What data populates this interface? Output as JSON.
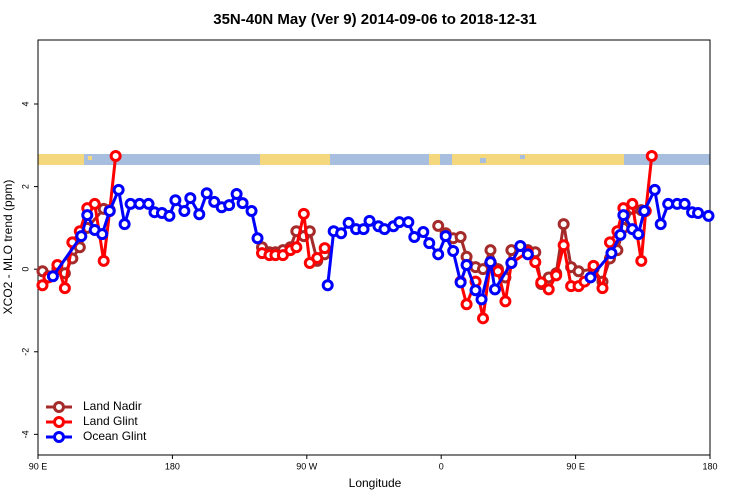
{
  "chart_data": {
    "type": "line",
    "title": "35N-40N May (Ver 9)   2014-09-06 to 2018-12-31",
    "xlabel": "Longitude",
    "ylabel": "XCO2 - MLO trend (ppm)",
    "xlim": [
      90,
      540
    ],
    "ylim": [
      -4.5,
      5.55
    ],
    "xticks": [
      {
        "value": 90,
        "label": "90 E"
      },
      180,
      {
        "value": 270,
        "label": "90 W"
      },
      {
        "value": 360,
        "label": "0"
      },
      {
        "value": 450,
        "label": "90 E"
      },
      {
        "value": 540,
        "label": "180"
      }
    ],
    "yticks": [
      -4,
      -2,
      0,
      2,
      4
    ],
    "legend": "bottom-left",
    "series": [
      {
        "name": "Land Nadir",
        "color": "#a52a2a",
        "x": [
          93,
          97,
          103,
          108,
          113,
          118,
          123,
          134,
          138,
          240,
          245,
          249,
          254,
          259,
          263,
          268,
          272,
          277,
          282,
          358,
          363,
          368,
          373,
          377,
          383,
          388,
          393,
          398,
          403,
          407,
          418,
          423,
          427,
          432,
          437,
          442,
          447,
          452,
          462,
          468,
          473,
          478,
          482,
          488,
          494
        ],
        "values": [
          -0.05,
          -0.17,
          0.0,
          -0.1,
          0.26,
          0.53,
          1.0,
          1.46,
          1.43,
          0.53,
          0.41,
          0.41,
          0.46,
          0.53,
          0.92,
          0.8,
          0.92,
          0.2,
          0.36,
          1.05,
          0.87,
          0.75,
          0.78,
          0.3,
          0.05,
          0.0,
          0.46,
          0.0,
          -0.2,
          0.46,
          0.46,
          0.41,
          -0.36,
          -0.2,
          -0.1,
          1.09,
          0.05,
          -0.05,
          0.0,
          -0.3,
          0.26,
          0.46,
          1.0,
          1.46,
          1.43
        ]
      },
      {
        "name": "Land Glint",
        "color": "#ff0000",
        "x": [
          93,
          97,
          103,
          108,
          113,
          118,
          123,
          128,
          134,
          138,
          142,
          240,
          245,
          249,
          254,
          259,
          263,
          268,
          272,
          277,
          282,
          373,
          377,
          383,
          388,
          393,
          398,
          403,
          407,
          418,
          423,
          427,
          432,
          437,
          442,
          447,
          452,
          456,
          462,
          468,
          473,
          478,
          482,
          488,
          494,
          497,
          501
        ],
        "values": [
          -0.39,
          -0.2,
          0.1,
          -0.46,
          0.65,
          0.92,
          1.48,
          1.58,
          0.2,
          1.41,
          2.74,
          0.39,
          0.34,
          0.34,
          0.34,
          0.46,
          0.53,
          1.34,
          0.15,
          0.27,
          0.51,
          -0.3,
          -0.85,
          -0.3,
          -1.19,
          0.17,
          -0.05,
          -0.78,
          0.15,
          0.41,
          0.17,
          -0.32,
          -0.49,
          -0.15,
          0.58,
          -0.41,
          -0.41,
          -0.3,
          0.08,
          -0.46,
          0.65,
          0.92,
          1.48,
          1.58,
          0.2,
          1.41,
          2.74
        ]
      },
      {
        "name": "Ocean Glint",
        "color": "#0000ff",
        "x": [
          100,
          119,
          123,
          128,
          133,
          138,
          144,
          148,
          152,
          158,
          164,
          168,
          173,
          178,
          182,
          188,
          192,
          198,
          203,
          208,
          213,
          218,
          223,
          227,
          233,
          237,
          284,
          288,
          293,
          298,
          303,
          308,
          312,
          318,
          322,
          328,
          332,
          338,
          342,
          348,
          352,
          358,
          363,
          368,
          373,
          377,
          383,
          387,
          393,
          396,
          407,
          413,
          418,
          460,
          474,
          480,
          482,
          488,
          492,
          496,
          503,
          507,
          512,
          518,
          523,
          528,
          532,
          539
        ],
        "values": [
          -0.17,
          0.8,
          1.31,
          0.95,
          0.85,
          1.41,
          1.92,
          1.09,
          1.58,
          1.58,
          1.58,
          1.38,
          1.36,
          1.29,
          1.67,
          1.41,
          1.72,
          1.33,
          1.84,
          1.63,
          1.5,
          1.55,
          1.82,
          1.6,
          1.41,
          0.75,
          -0.39,
          0.92,
          0.87,
          1.12,
          0.97,
          0.97,
          1.17,
          1.04,
          0.97,
          1.04,
          1.14,
          1.14,
          0.78,
          0.9,
          0.63,
          0.36,
          0.8,
          0.44,
          -0.32,
          0.1,
          -0.51,
          -0.73,
          0.17,
          -0.49,
          0.15,
          0.56,
          0.36,
          -0.2,
          0.39,
          0.83,
          1.31,
          0.97,
          0.85,
          1.41,
          1.92,
          1.09,
          1.58,
          1.58,
          1.58,
          1.38,
          1.36,
          1.29
        ]
      }
    ]
  }
}
